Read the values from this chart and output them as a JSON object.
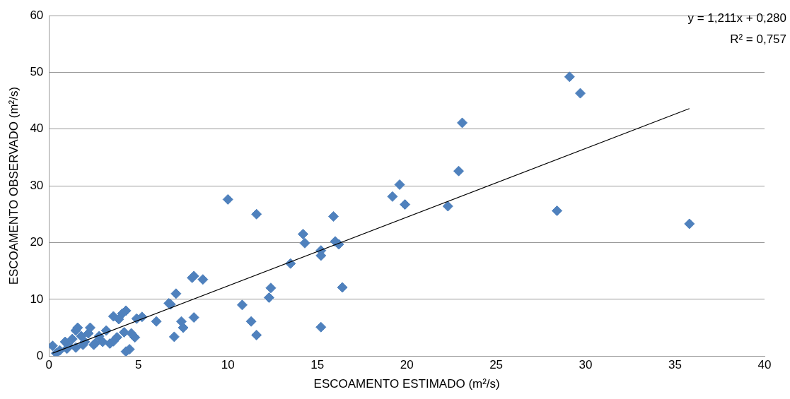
{
  "chart_data": {
    "type": "scatter",
    "xlabel": "ESCOAMENTO ESTIMADO (m²/s)",
    "ylabel": "ESCOAMENTO OBSERVADO (m²/s)",
    "xlim": [
      0,
      40
    ],
    "xticks": [
      0,
      5,
      10,
      15,
      20,
      25,
      30,
      35,
      40
    ],
    "ylim": [
      0,
      60
    ],
    "yticks": [
      0,
      10,
      20,
      30,
      40,
      50,
      60
    ],
    "grid": "y",
    "legend": false,
    "marker": "diamond",
    "annotations": [
      "y = 1,211x + 0,280",
      "R² = 0,757"
    ],
    "series": [
      {
        "type": "scatter",
        "color": "#4f81bd",
        "x": [
          29.1,
          29.7,
          23.1,
          22.9,
          19.6,
          19.2,
          19.9,
          22.3,
          28.4,
          35.8,
          10,
          11.6,
          15.9,
          14.2,
          14.3,
          16,
          16.2,
          15.2,
          15.2,
          13.5,
          16.4,
          12.4,
          12.3,
          10.8,
          11.3,
          11.6,
          15.2,
          8,
          8.1,
          8.6,
          7.1,
          6.7,
          6.8,
          8.1,
          7.4,
          7.5,
          7,
          6,
          5.2,
          4.9,
          4.3,
          4.1,
          3.6,
          3.9,
          4.8,
          4.5,
          4.3,
          4.6,
          4.2,
          0.2,
          0.4,
          0.6,
          0.9,
          1.1,
          1.3,
          1.5,
          1.6,
          1.5,
          1.8,
          2,
          2.2,
          2.3,
          2.5,
          2.8,
          3,
          3.2,
          3.4,
          3.6,
          3.8,
          1,
          1.9,
          2.6
        ],
        "values": [
          49.2,
          46.3,
          41.1,
          32.6,
          30.2,
          28.1,
          26.7,
          26.4,
          25.6,
          23.3,
          27.6,
          25,
          24.6,
          21.5,
          19.9,
          20.2,
          19.7,
          18.6,
          17.7,
          16.3,
          12.1,
          12,
          10.3,
          9,
          6.1,
          3.7,
          5.1,
          13.8,
          14.1,
          13.5,
          11,
          9.3,
          9.1,
          6.8,
          6.1,
          5,
          3.4,
          6.1,
          6.9,
          6.6,
          8,
          7.5,
          7,
          6.5,
          3.3,
          1.2,
          0.8,
          4,
          4.2,
          1.8,
          0.5,
          1,
          2.5,
          1.8,
          3,
          4.5,
          5,
          1.5,
          3.5,
          2.5,
          4,
          5,
          2,
          3.5,
          2.5,
          4.5,
          2.2,
          2.6,
          3.3,
          1.3,
          2,
          2.3
        ]
      },
      {
        "type": "line",
        "color": "#000000",
        "marker": "none",
        "x": [
          0.2,
          35.8
        ],
        "values": [
          0.5,
          43.6
        ]
      }
    ]
  }
}
